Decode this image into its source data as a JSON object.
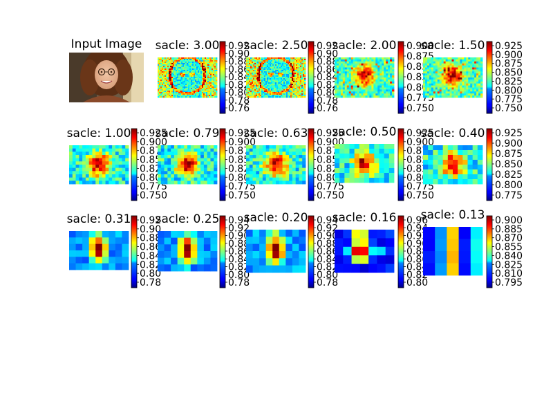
{
  "figure": {
    "input_panel": {
      "title": "Input Image",
      "image": "portrait-photo-woman-curly-hair-glasses"
    },
    "colormap": "jet"
  },
  "chart_data": [
    {
      "type": "heatmap",
      "title": "sacle: 3.00",
      "colorbar_ticks": [
        "0.92",
        "0.90",
        "0.88",
        "0.86",
        "0.84",
        "0.82",
        "0.80",
        "0.78",
        "0.76"
      ],
      "pattern": "fine-edge-map"
    },
    {
      "type": "heatmap",
      "title": "sacle: 2.50",
      "colorbar_ticks": [
        "0.92",
        "0.90",
        "0.88",
        "0.86",
        "0.84",
        "0.82",
        "0.80",
        "0.78",
        "0.76"
      ],
      "pattern": "fine-edge-map"
    },
    {
      "type": "heatmap",
      "title": "sacle: 2.00",
      "colorbar_ticks": [
        "0.900",
        "0.875",
        "0.850",
        "0.825",
        "0.800",
        "0.775",
        "0.750"
      ],
      "pattern": "face-hotspots"
    },
    {
      "type": "heatmap",
      "title": "sacle: 1.50",
      "colorbar_ticks": [
        "0.925",
        "0.900",
        "0.875",
        "0.850",
        "0.825",
        "0.800",
        "0.775",
        "0.750"
      ],
      "pattern": "face-hotspots"
    },
    {
      "type": "heatmap",
      "title": "sacle: 1.00",
      "colorbar_ticks": [
        "0.925",
        "0.900",
        "0.875",
        "0.850",
        "0.825",
        "0.800",
        "0.775",
        "0.750"
      ],
      "pattern": "blocky-medium"
    },
    {
      "type": "heatmap",
      "title": "sacle: 0.79",
      "colorbar_ticks": [
        "0.925",
        "0.900",
        "0.875",
        "0.850",
        "0.825",
        "0.800",
        "0.775",
        "0.750"
      ],
      "pattern": "blocky-medium"
    },
    {
      "type": "heatmap",
      "title": "sacle: 0.63",
      "colorbar_ticks": [
        "0.925",
        "0.900",
        "0.875",
        "0.850",
        "0.825",
        "0.800",
        "0.775",
        "0.750"
      ],
      "pattern": "blocky-medium"
    },
    {
      "type": "heatmap",
      "title": "sacle: 0.50",
      "colorbar_ticks": [
        "0.925",
        "0.900",
        "0.875",
        "0.850",
        "0.825",
        "0.800",
        "0.775",
        "0.750"
      ],
      "pattern": "blocky-coarse"
    },
    {
      "type": "heatmap",
      "title": "sacle: 0.40",
      "colorbar_ticks": [
        "0.925",
        "0.900",
        "0.875",
        "0.850",
        "0.825",
        "0.800",
        "0.775"
      ],
      "pattern": "blocky-coarse"
    },
    {
      "type": "heatmap",
      "title": "sacle: 0.31",
      "colorbar_ticks": [
        "0.92",
        "0.90",
        "0.88",
        "0.86",
        "0.84",
        "0.82",
        "0.80",
        "0.78"
      ],
      "pattern": "center-blob"
    },
    {
      "type": "heatmap",
      "title": "sacle: 0.25",
      "colorbar_ticks": [
        "0.94",
        "0.92",
        "0.90",
        "0.88",
        "0.86",
        "0.84",
        "0.82",
        "0.80",
        "0.78"
      ],
      "pattern": "center-blob"
    },
    {
      "type": "heatmap",
      "title": "sacle: 0.20",
      "colorbar_ticks": [
        "0.94",
        "0.92",
        "0.90",
        "0.88",
        "0.86",
        "0.84",
        "0.82",
        "0.80",
        "0.78"
      ],
      "pattern": "center-blob"
    },
    {
      "type": "heatmap",
      "title": "sacle: 0.16",
      "colorbar_ticks": [
        "0.96",
        "0.94",
        "0.92",
        "0.90",
        "0.88",
        "0.86",
        "0.84",
        "0.82",
        "0.80"
      ],
      "pattern": "cross-blob"
    },
    {
      "type": "heatmap",
      "title": "sacle: 0.13",
      "colorbar_ticks": [
        "0.900",
        "0.885",
        "0.870",
        "0.855",
        "0.840",
        "0.825",
        "0.810",
        "0.795"
      ],
      "pattern": "smooth-vertical"
    }
  ]
}
